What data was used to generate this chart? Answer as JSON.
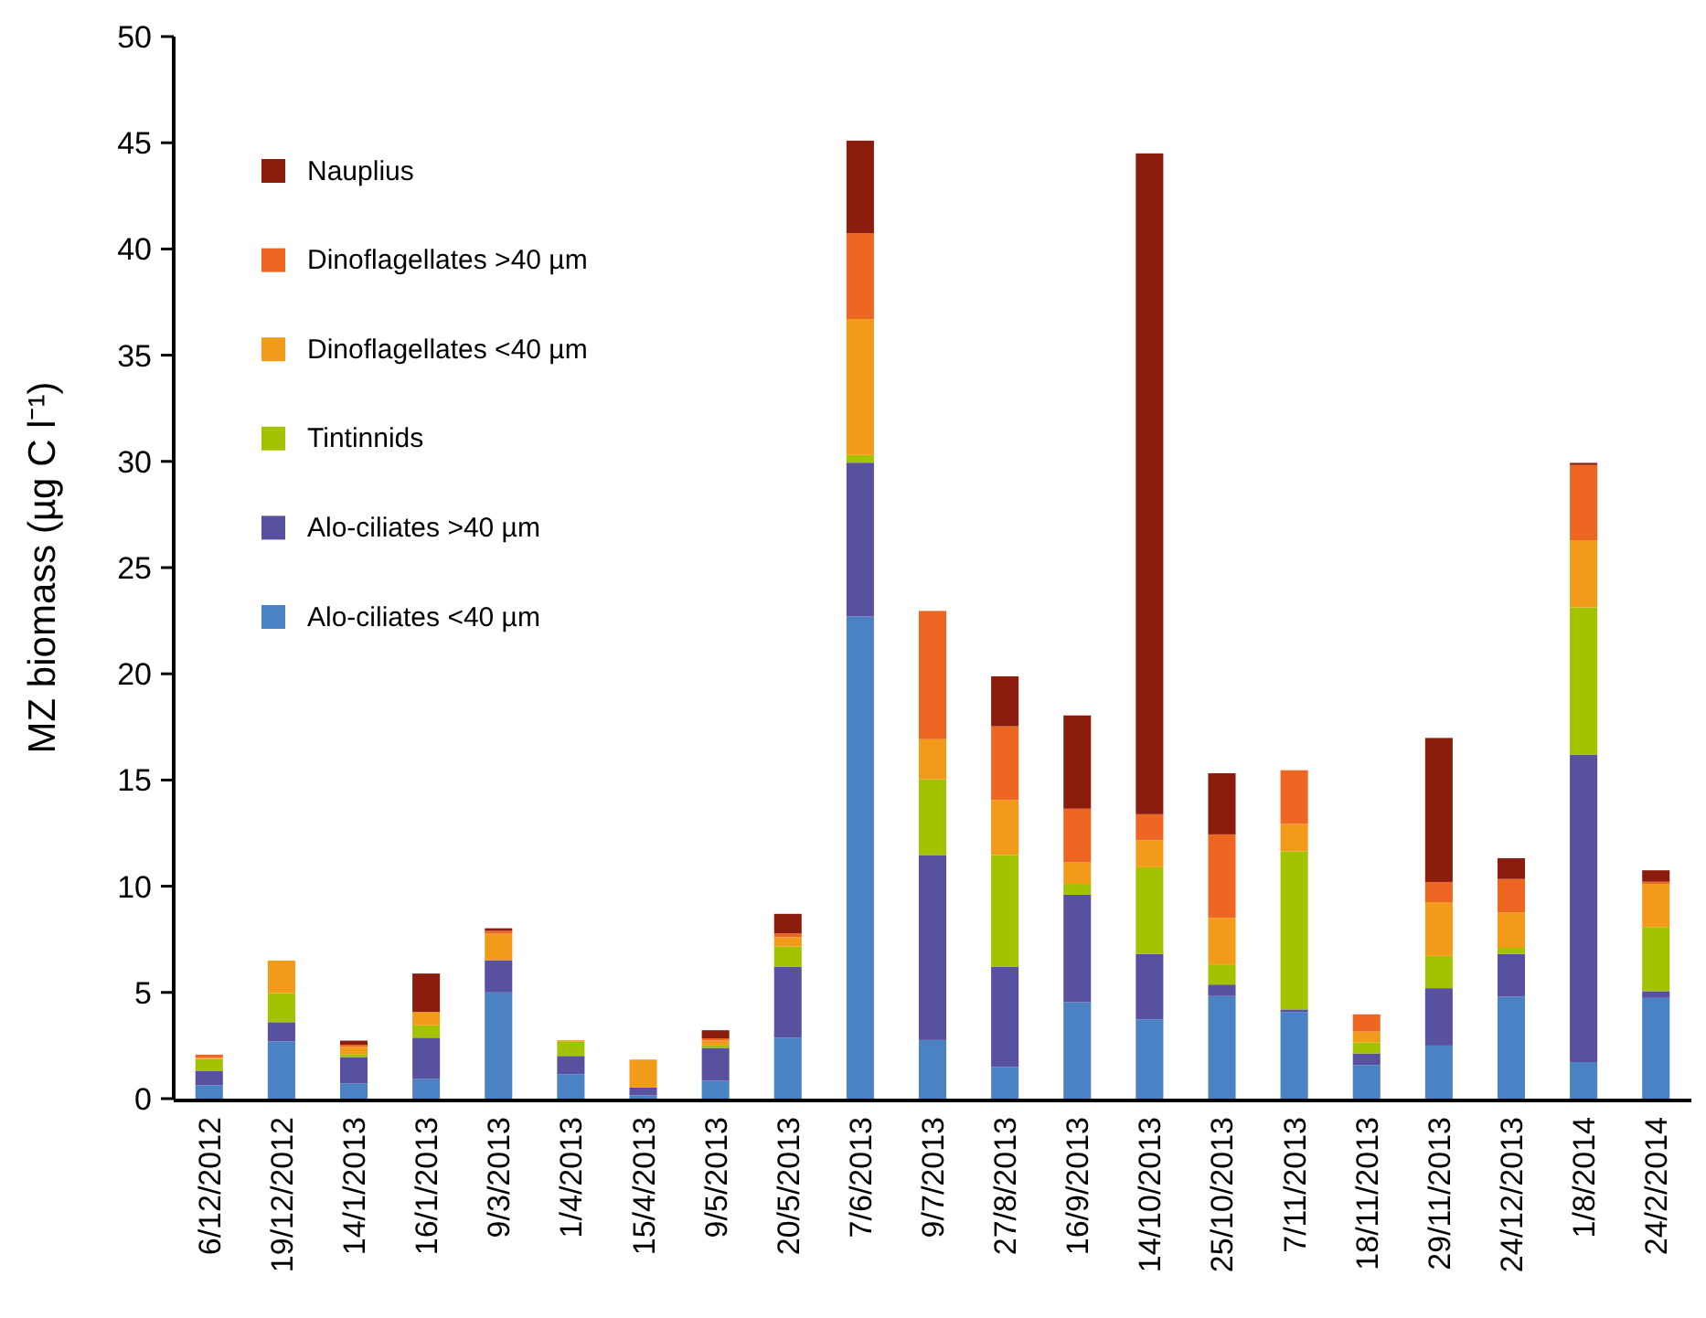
{
  "chart_data": {
    "type": "bar",
    "stacked": true,
    "ylabel": "MZ biomass (µg C l⁻¹)",
    "categories": [
      "6/12/2012",
      "19/12/2012",
      "14/1/2013",
      "16/1/2013",
      "9/3/2013",
      "1/4/2013",
      "15/4/2013",
      "9/5/2013",
      "20/5/2013",
      "7/6/2013",
      "9/7/2013",
      "27/8/2013",
      "16/9/2013",
      "14/10/2013",
      "25/10/2013",
      "7/11/2013",
      "18/11/2013",
      "29/11/2013",
      "24/12/2013",
      "1/8/2014",
      "24/2/2014"
    ],
    "series": [
      {
        "name": "Alo-ciliates <40 µm",
        "color": "#4a82c3",
        "values": [
          0.63,
          2.7,
          0.72,
          0.92,
          5.0,
          1.15,
          0.15,
          0.84,
          2.87,
          22.7,
          2.76,
          1.49,
          4.54,
          3.73,
          4.83,
          4.08,
          1.58,
          2.5,
          4.8,
          1.72,
          4.74
        ]
      },
      {
        "name": "Alo-ciliates >40 µm",
        "color": "#5751a0",
        "values": [
          0.66,
          0.9,
          1.24,
          1.95,
          1.52,
          0.86,
          0.37,
          1.55,
          3.33,
          7.24,
          8.71,
          4.71,
          5.06,
          3.08,
          0.54,
          0.12,
          0.55,
          2.7,
          2.01,
          14.48,
          0.32
        ]
      },
      {
        "name": "Tintinnids",
        "color": "#a3c300",
        "values": [
          0.58,
          1.37,
          0.14,
          0.58,
          0,
          0.69,
          0,
          0.11,
          0.96,
          0.36,
          3.56,
          5.27,
          0.51,
          4.08,
          0.95,
          7.44,
          0.52,
          1.52,
          0.29,
          6.93,
          3.02
        ]
      },
      {
        "name": "Dinoflagellates <40 µm",
        "color": "#f29b1a",
        "values": [
          0.05,
          1.53,
          0.34,
          0.63,
          1.24,
          0.05,
          1.32,
          0.23,
          0.44,
          6.4,
          1.89,
          2.58,
          1.01,
          1.27,
          2.19,
          1.29,
          0.51,
          2.53,
          1.67,
          3.16,
          2.03
        ]
      },
      {
        "name": "Dinoflagellates >40 µm",
        "color": "#ee6722",
        "values": [
          0.15,
          0,
          0.1,
          0,
          0.14,
          0,
          0,
          0.11,
          0.18,
          4.05,
          6.04,
          3.48,
          2.53,
          1.23,
          3.93,
          2.53,
          0.81,
          0.95,
          1.57,
          3.54,
          0.1
        ]
      },
      {
        "name": "Nauplius",
        "color": "#8c1c0e",
        "values": [
          0,
          0,
          0.19,
          1.81,
          0.12,
          0,
          0,
          0.38,
          0.92,
          4.35,
          0,
          2.35,
          4.39,
          31.11,
          2.88,
          0,
          0,
          6.78,
          0.98,
          0.1,
          0.54
        ]
      }
    ],
    "ylim": [
      0,
      50
    ],
    "yticks": [
      0,
      5,
      10,
      15,
      20,
      25,
      30,
      35,
      40,
      45,
      50
    ],
    "legend": "top left"
  }
}
